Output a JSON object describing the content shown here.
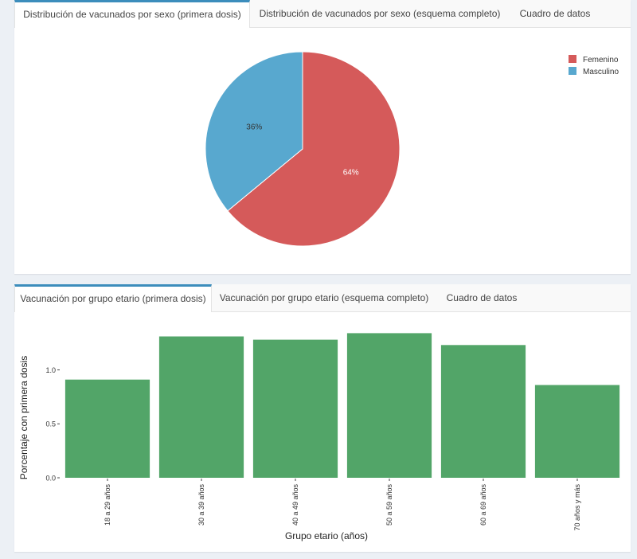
{
  "top_panel": {
    "tabs": [
      {
        "label": "Distribución de vacunados por sexo (primera dosis)",
        "active": true
      },
      {
        "label": "Distribución de vacunados por sexo (esquema completo)",
        "active": false
      },
      {
        "label": "Cuadro de datos",
        "active": false
      }
    ]
  },
  "bottom_panel": {
    "tabs": [
      {
        "label": "Vacunación por grupo etario (primera dosis)",
        "active": true
      },
      {
        "label": "Vacunación por grupo etario (esquema completo)",
        "active": false
      },
      {
        "label": "Cuadro de datos",
        "active": false
      }
    ]
  },
  "chart_data": [
    {
      "type": "pie",
      "title": "",
      "slices": [
        {
          "label": "Femenino",
          "value": 64,
          "display": "64%",
          "color": "#d55a5a"
        },
        {
          "label": "Masculino",
          "value": 36,
          "display": "36%",
          "color": "#58a8cf"
        }
      ],
      "legend": "top-right"
    },
    {
      "type": "bar",
      "title": "",
      "categories": [
        "18 a 29 años",
        "30 a 39 años",
        "40 a 49 años",
        "50 a 59 años",
        "60 a 69 años",
        "70 años y más"
      ],
      "values": [
        0.91,
        1.31,
        1.28,
        1.34,
        1.23,
        0.86
      ],
      "xlabel": "Grupo etario (años)",
      "ylabel": "Porcentaje con primera dosis",
      "ylim": [
        0,
        1.38
      ],
      "yticks": [
        "0.0",
        "0.5",
        "1.0"
      ],
      "ytick_values": [
        0,
        0.5,
        1.0
      ],
      "bar_color": "#52a568",
      "grid": false
    }
  ]
}
